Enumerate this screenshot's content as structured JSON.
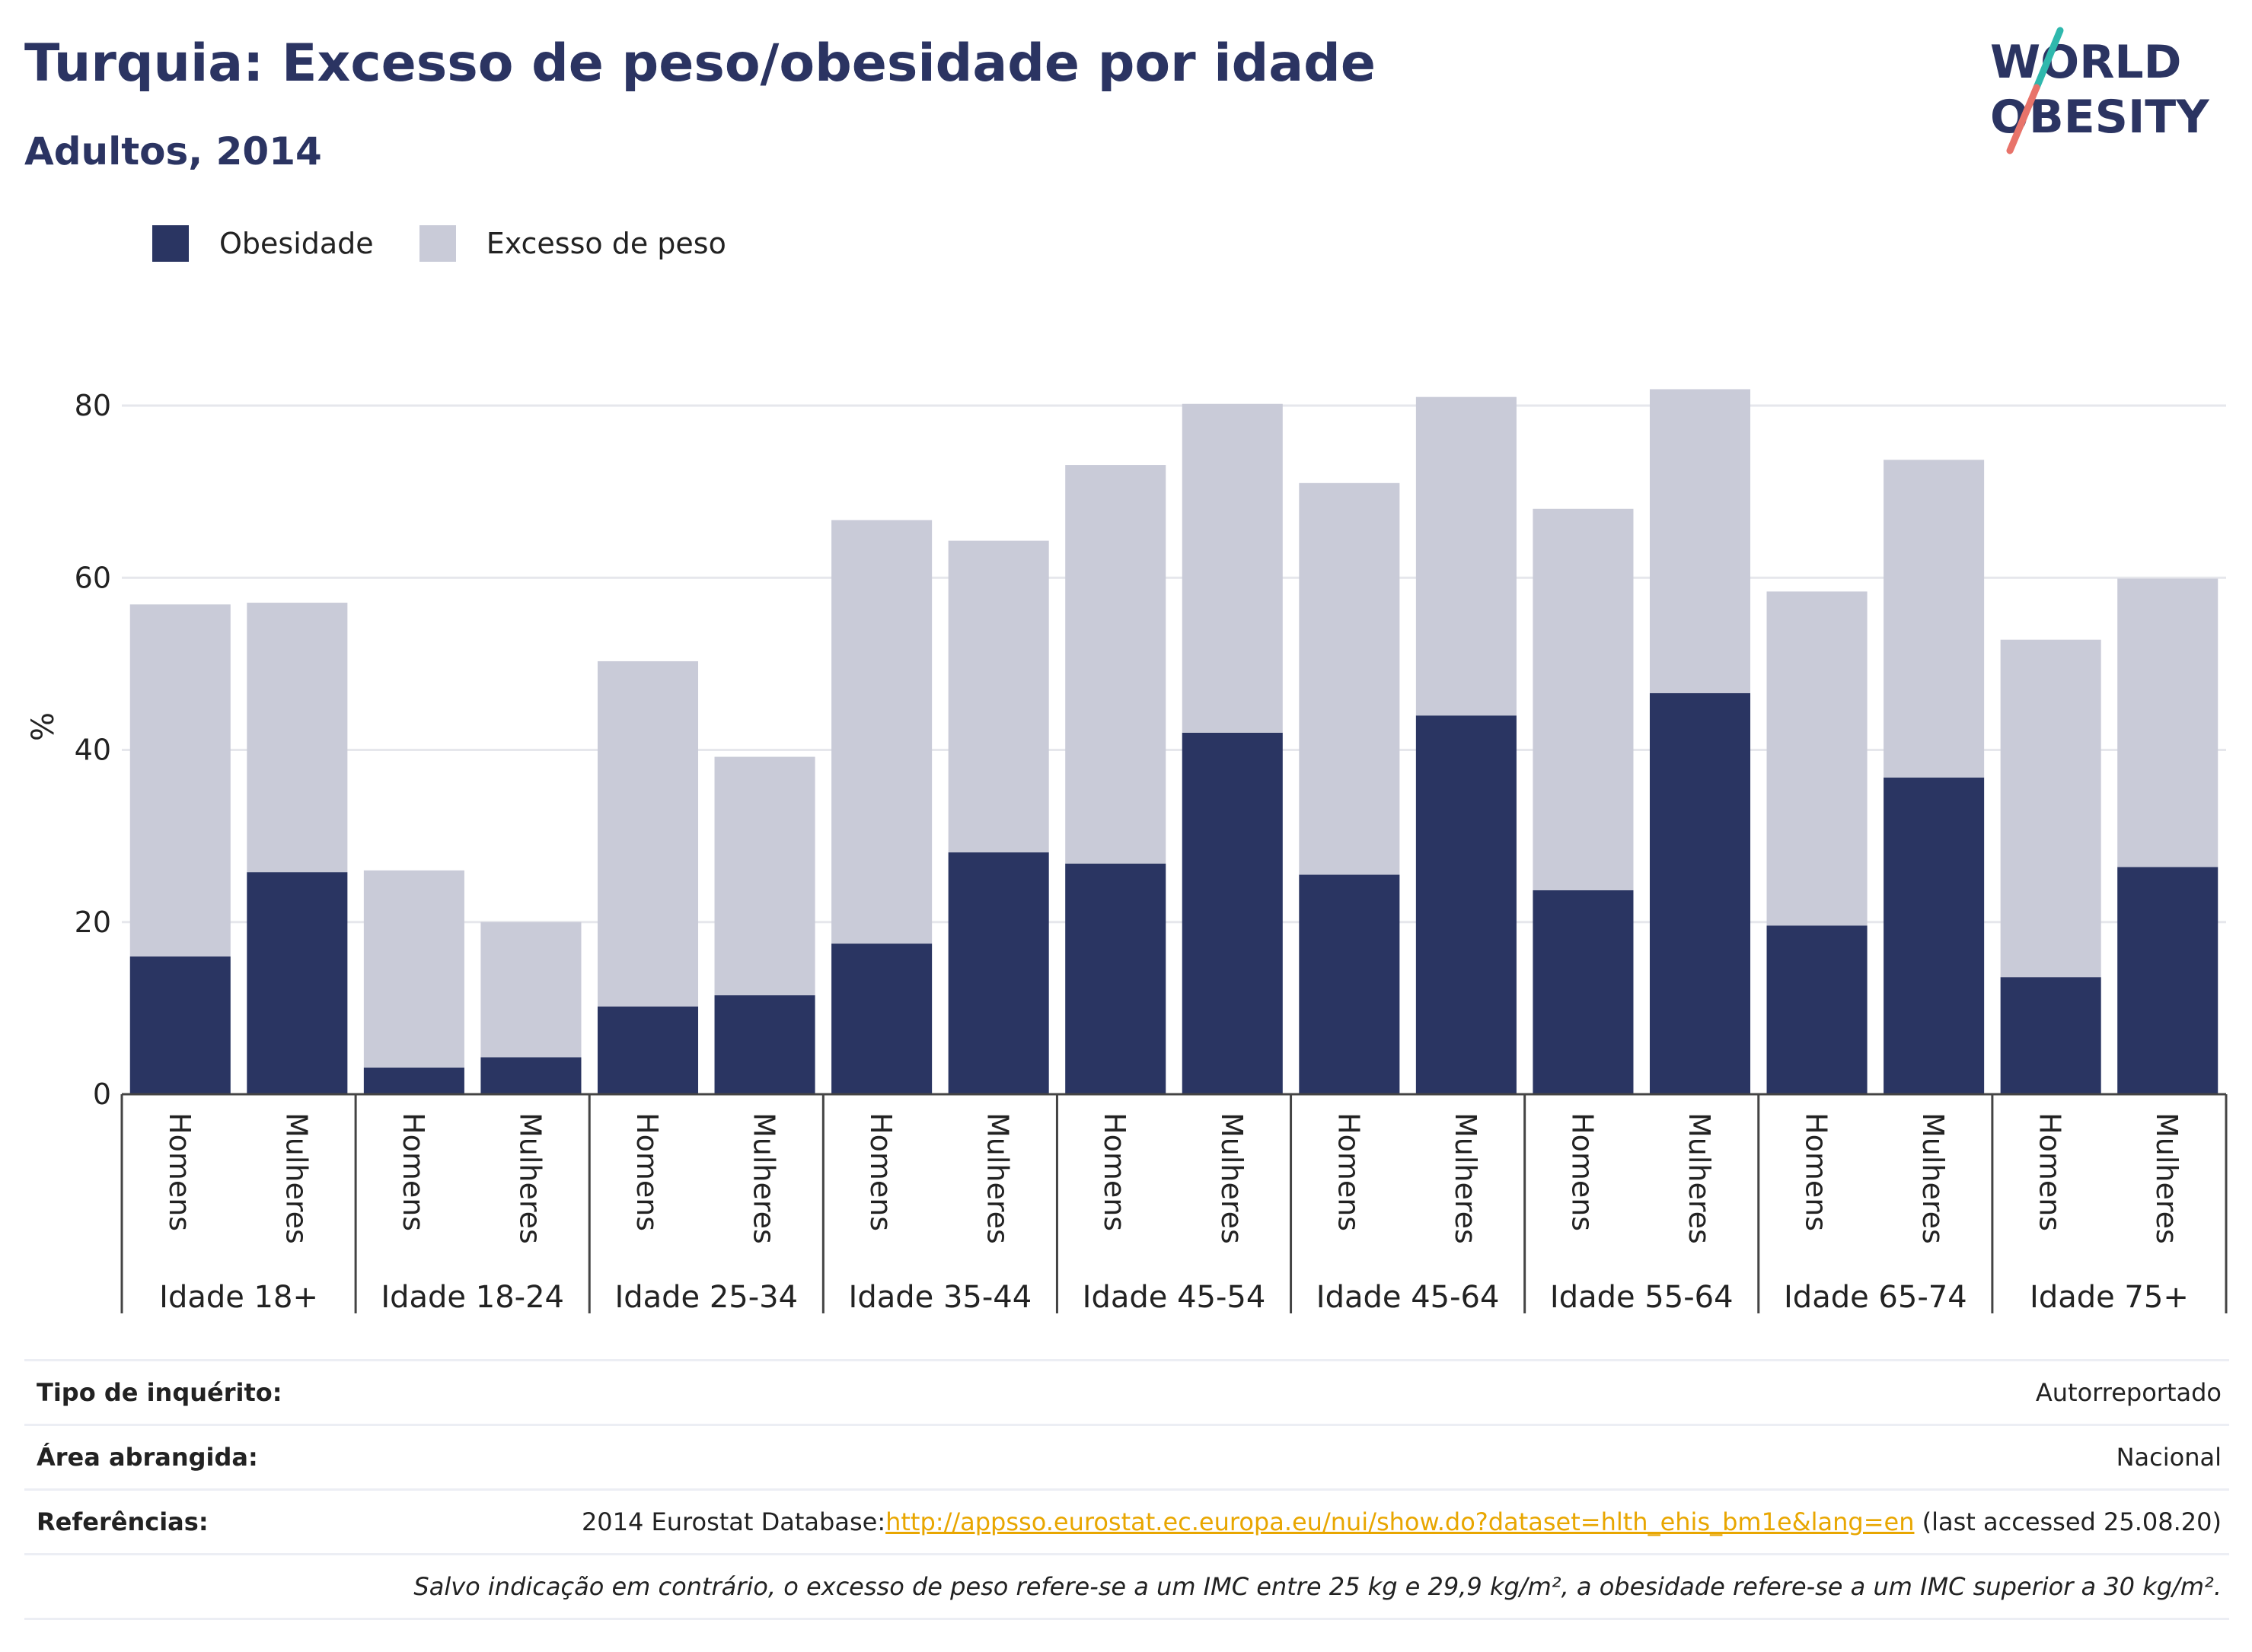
{
  "header": {
    "title": "Turquia: Excesso de peso/obesidade por idade",
    "subtitle": "Adultos, 2014",
    "logo_text_line1": "WORLD",
    "logo_text_line2": "OBESITY"
  },
  "legend": {
    "items": [
      {
        "label": "Obesidade",
        "color": "#2a3562"
      },
      {
        "label": "Excesso de peso",
        "color": "#c9cbd8"
      }
    ]
  },
  "info": {
    "survey_type_label": "Tipo de inquérito:",
    "survey_type_value": "Autorreportado",
    "area_label": "Área abrangida:",
    "area_value": "Nacional",
    "references_label": "Referências:",
    "references_prefix": "2014 Eurostat Database:",
    "references_link": "http://appsso.eurostat.ec.europa.eu/nui/show.do?dataset=hlth_ehis_bm1e&lang=en",
    "references_suffix": " (last accessed 25.08.20)",
    "note": "Salvo indicação em contrário, o excesso de peso refere-se a um IMC entre 25 kg e 29,9 kg/m², a obesidade refere-se a um IMC superior a 30 kg/m²."
  },
  "chart_data": {
    "type": "bar",
    "stacked": true,
    "ylabel": "%",
    "ylim": [
      0,
      90
    ],
    "yticks": [
      0,
      20,
      40,
      60,
      80
    ],
    "grid": true,
    "legend_position": "top-left",
    "groups": [
      "Idade 18+",
      "Idade 18-24",
      "Idade 25-34",
      "Idade 35-44",
      "Idade 45-54",
      "Idade 45-64",
      "Idade 55-64",
      "Idade 65-74",
      "Idade 75+"
    ],
    "sexes": [
      "Homens",
      "Mulheres"
    ],
    "categories": [
      "Idade 18+ Homens",
      "Idade 18+ Mulheres",
      "Idade 18-24 Homens",
      "Idade 18-24 Mulheres",
      "Idade 25-34 Homens",
      "Idade 25-34 Mulheres",
      "Idade 35-44 Homens",
      "Idade 35-44 Mulheres",
      "Idade 45-54 Homens",
      "Idade 45-54 Mulheres",
      "Idade 45-64 Homens",
      "Idade 45-64 Mulheres",
      "Idade 55-64 Homens",
      "Idade 55-64 Mulheres",
      "Idade 65-74 Homens",
      "Idade 65-74 Mulheres",
      "Idade 75+ Homens",
      "Idade 75+ Mulheres"
    ],
    "series": [
      {
        "name": "Obesidade",
        "color": "#2a3562",
        "values": [
          16.0,
          25.8,
          3.1,
          4.3,
          10.2,
          11.5,
          17.5,
          28.1,
          26.8,
          42.0,
          25.5,
          44.0,
          23.7,
          46.6,
          19.6,
          36.8,
          13.6,
          26.4
        ]
      },
      {
        "name": "Excesso de peso",
        "color": "#c9cbd8",
        "values": [
          40.9,
          31.3,
          22.9,
          15.7,
          40.1,
          27.7,
          49.2,
          36.2,
          46.3,
          38.2,
          45.5,
          37.0,
          44.3,
          35.3,
          38.8,
          36.9,
          39.2,
          33.5
        ]
      }
    ]
  }
}
